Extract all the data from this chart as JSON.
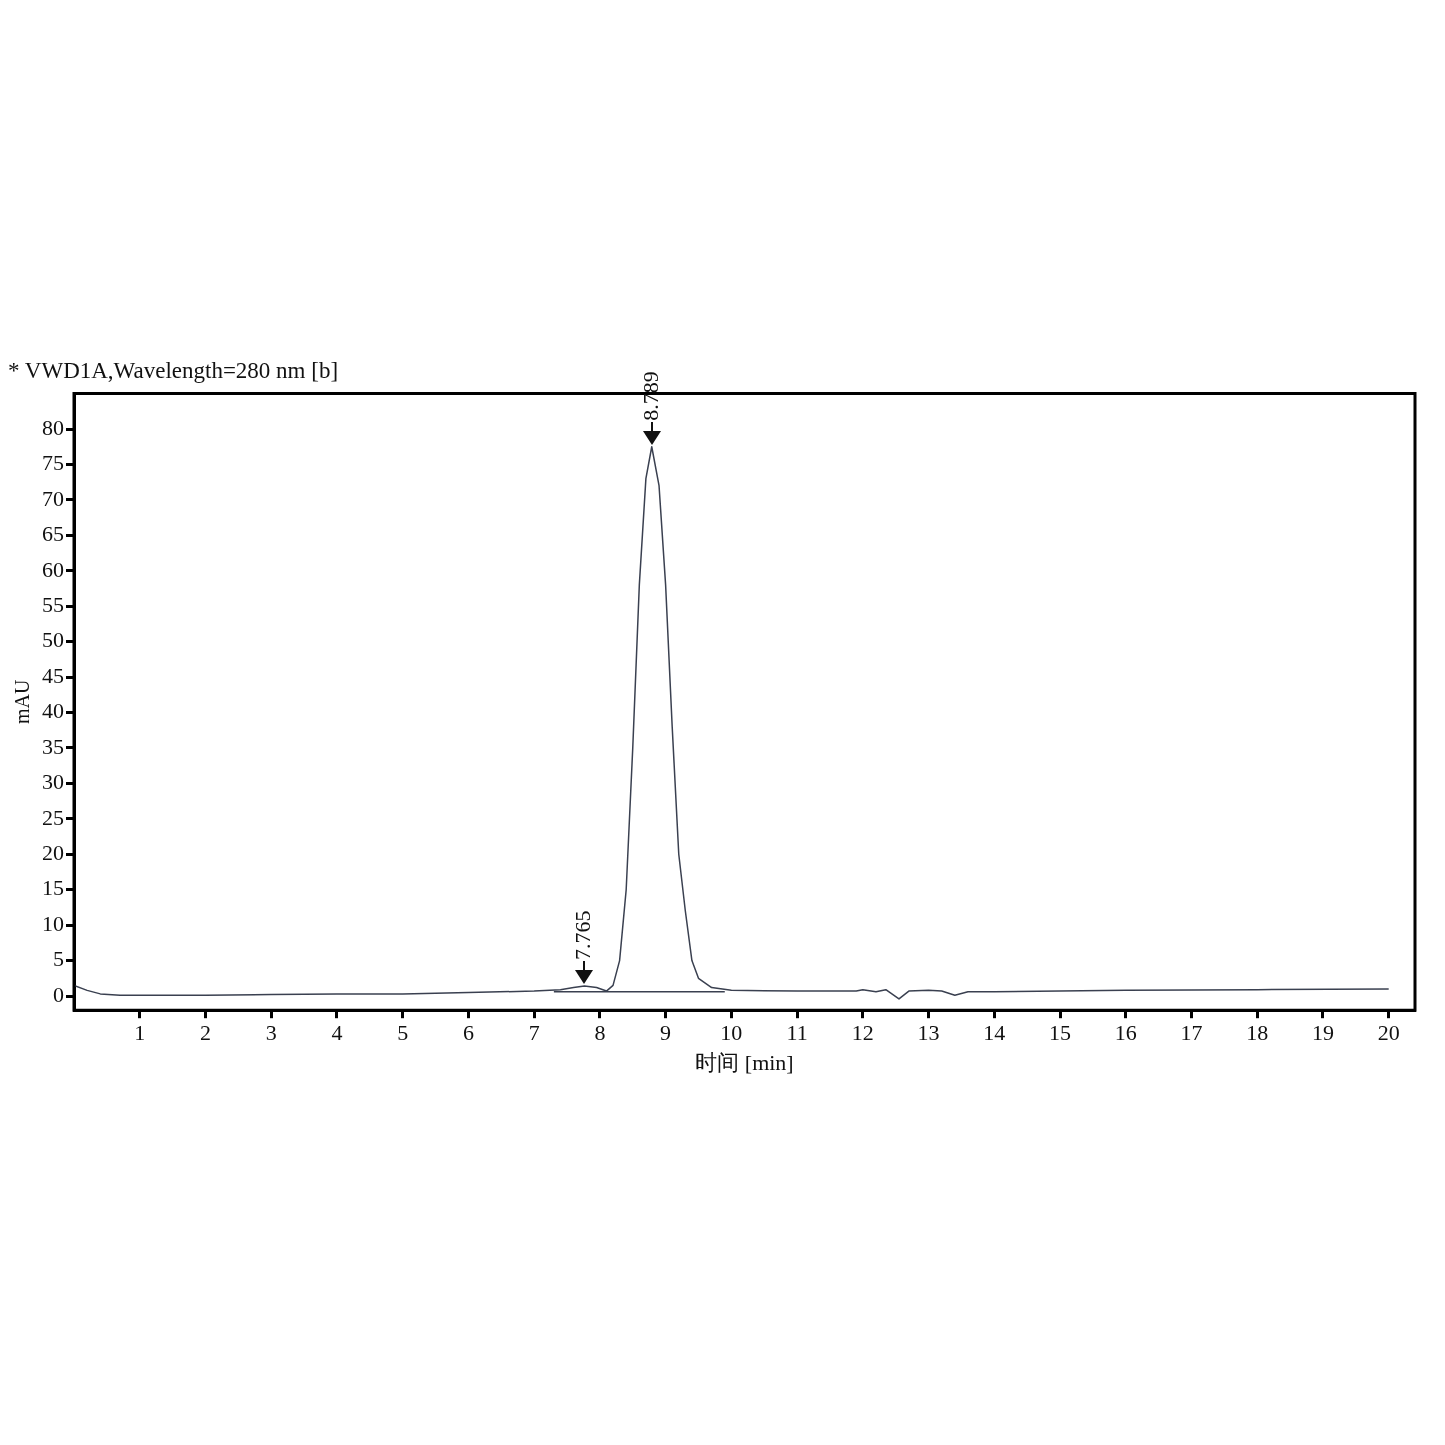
{
  "chart_data": {
    "type": "line",
    "title": "* VWD1A,Wavelength=280 nm [b]",
    "xlabel": "时间 [min]",
    "ylabel": "mAU",
    "xlim": [
      0,
      20.4
    ],
    "xticks": [
      1,
      2,
      3,
      4,
      5,
      6,
      7,
      8,
      9,
      10,
      11,
      12,
      13,
      14,
      15,
      16,
      17,
      18,
      19,
      20
    ],
    "ylim": [
      -2,
      85
    ],
    "yticks": [
      0,
      5,
      10,
      15,
      20,
      25,
      30,
      35,
      40,
      45,
      50,
      55,
      60,
      65,
      70,
      75,
      80
    ],
    "grid": false,
    "legend": false,
    "marker": "none",
    "line_style": "solid",
    "series": [
      {
        "color": "#3a4050",
        "x": [
          0,
          0.2,
          0.4,
          0.7,
          1,
          2,
          3,
          4,
          5,
          6,
          7,
          7.4,
          7.6,
          7.765,
          7.95,
          8.1,
          8.2,
          8.3,
          8.4,
          8.5,
          8.6,
          8.7,
          8.789,
          8.9,
          9.0,
          9.1,
          9.2,
          9.3,
          9.4,
          9.5,
          9.7,
          10,
          11,
          11.9,
          12.0,
          12.2,
          12.35,
          12.55,
          12.7,
          13.0,
          13.2,
          13.4,
          13.6,
          14,
          16,
          18,
          20
        ],
        "values": [
          1.5,
          0.8,
          0.3,
          0.1,
          0.1,
          0.1,
          0.2,
          0.3,
          0.3,
          0.5,
          0.7,
          0.9,
          1.2,
          1.4,
          1.2,
          0.7,
          1.5,
          5,
          15,
          35,
          58,
          73,
          77.5,
          72,
          58,
          38,
          20,
          12,
          5,
          2.5,
          1.2,
          0.8,
          0.7,
          0.7,
          0.9,
          0.6,
          0.9,
          -0.4,
          0.7,
          0.8,
          0.7,
          0.1,
          0.6,
          0.6,
          0.8,
          0.9,
          1.0
        ]
      },
      {
        "color": "#3a4050",
        "x": [
          7.3,
          9.9
        ],
        "values": [
          0.6,
          0.6
        ]
      }
    ],
    "annotations": [
      {
        "text": "7.765",
        "x": 7.765,
        "y": 1.4
      },
      {
        "text": "8.789",
        "x": 8.789,
        "y": 77.5
      }
    ]
  }
}
